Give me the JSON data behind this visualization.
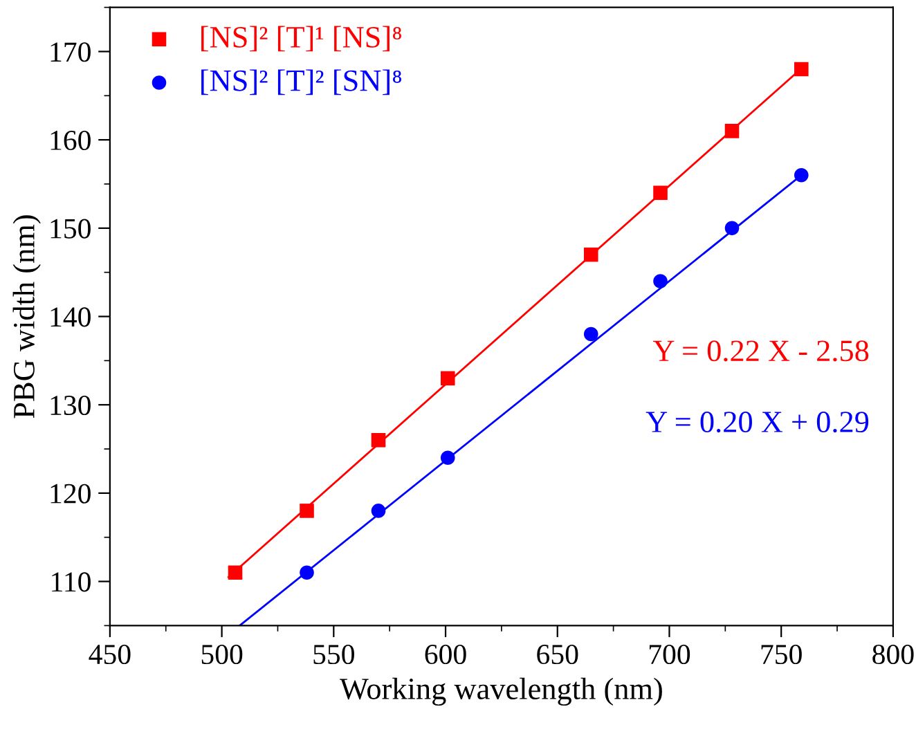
{
  "chart_data": {
    "type": "scatter",
    "xlabel": "Working wavelength (nm)",
    "ylabel": "PBG width (nm)",
    "xlim": [
      450,
      800
    ],
    "xticks": [
      450,
      500,
      550,
      600,
      650,
      700,
      750,
      800
    ],
    "ylim": [
      105,
      175
    ],
    "yticks": [
      110,
      120,
      130,
      140,
      150,
      160,
      170
    ],
    "grid": false,
    "legend": "top left",
    "series": [
      {
        "name": "[NS]² [T]¹ [NS]⁸",
        "marker": "square",
        "color": "#ff0000",
        "x": [
          506,
          538,
          570,
          601,
          665,
          696,
          728,
          759
        ],
        "values": [
          111,
          118,
          126,
          133,
          147,
          154,
          161,
          168
        ]
      },
      {
        "name": "[NS]² [T]² [SN]⁸",
        "marker": "circle",
        "color": "#0000ff",
        "x": [
          538,
          570,
          601,
          665,
          696,
          728,
          759
        ],
        "values": [
          111,
          118,
          124,
          138,
          144,
          150,
          156
        ]
      },
      {
        "type": "line",
        "marker": "none",
        "color": "#ff0000",
        "x": [
          503,
          760
        ],
        "values": [
          110.5,
          168.3
        ]
      },
      {
        "type": "line",
        "marker": "none",
        "color": "#0000ff",
        "x": [
          508,
          760
        ],
        "values": [
          105,
          156.2
        ]
      }
    ],
    "annotations": [
      "Y = 0.22 X - 2.58",
      "Y = 0.20 X + 0.29"
    ]
  }
}
